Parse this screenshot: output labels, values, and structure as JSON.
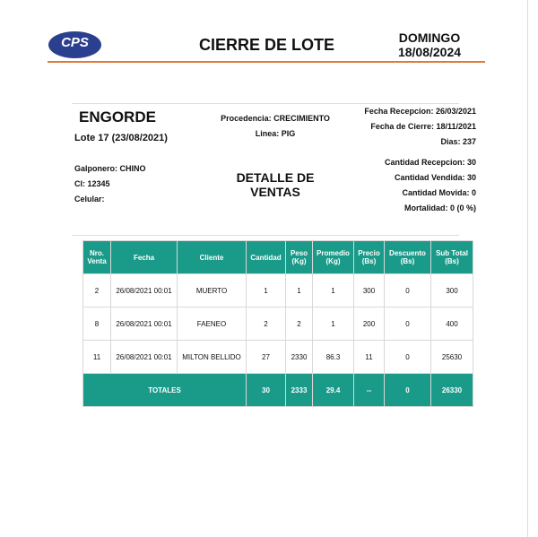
{
  "header": {
    "logo": "CPS",
    "title": "CIERRE DE LOTE",
    "day": "DOMINGO",
    "date": "18/08/2024"
  },
  "info": {
    "type": "ENGORDE",
    "lote": "Lote 17 (23/08/2021)",
    "procedencia": "Procedencia: CRECIMIENTO",
    "linea": "Linea: PIG",
    "fecha_recepcion": "Fecha Recepcion: 26/03/2021",
    "fecha_cierre": "Fecha de Cierre: 18/11/2021",
    "dias": "Dias: 237",
    "galponero": "Galponero: CHINO",
    "ci": "CI: 12345",
    "celular": "Celular:",
    "section_title": "DETALLE DE VENTAS",
    "cantidad_recepcion": "Cantidad Recepcion: 30",
    "cantidad_vendida": "Cantidad Vendida: 30",
    "cantidad_movida": "Cantidad Movida: 0",
    "mortalidad": "Mortalidad: 0 (0 %)"
  },
  "table": {
    "headers": [
      "Nro. Venta",
      "Fecha",
      "Cliente",
      "Cantidad",
      "Peso (Kg)",
      "Promedio (Kg)",
      "Precio (Bs)",
      "Descuento (Bs)",
      "Sub Total (Bs)"
    ],
    "rows": [
      [
        "2",
        "26/08/2021 00:01",
        "MUERTO",
        "1",
        "1",
        "1",
        "300",
        "0",
        "300"
      ],
      [
        "8",
        "26/08/2021 00:01",
        "FAENEO",
        "2",
        "2",
        "1",
        "200",
        "0",
        "400"
      ],
      [
        "11",
        "26/08/2021 00:01",
        "MILTON BELLIDO",
        "27",
        "2330",
        "86.3",
        "11",
        "0",
        "25630"
      ]
    ],
    "totals": [
      "TOTALES",
      "30",
      "2333",
      "29.4",
      "--",
      "0",
      "26330"
    ]
  }
}
